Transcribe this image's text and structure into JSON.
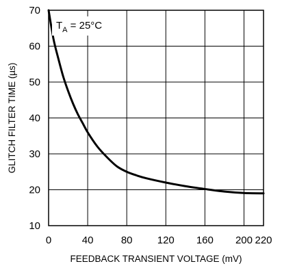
{
  "chart_data": {
    "type": "line",
    "xlabel": "FEEDBACK TRANSIENT VOLTAGE (mV)",
    "ylabel": "GLITCH FILTER TIME (µs)",
    "xlim": [
      0,
      220
    ],
    "ylim": [
      10,
      70
    ],
    "xticks": [
      0,
      40,
      80,
      120,
      160,
      200,
      220
    ],
    "yticks": [
      10,
      20,
      30,
      40,
      50,
      60,
      70
    ],
    "grid": true,
    "annotation": {
      "prefix": "T",
      "subscript": "A",
      "suffix": " = 25°C"
    },
    "series": [
      {
        "x": [
          0,
          5,
          10,
          15,
          20,
          25,
          30,
          35,
          40,
          50,
          60,
          70,
          80,
          90,
          100,
          120,
          140,
          160,
          180,
          200,
          220
        ],
        "y": [
          70,
          62,
          56.5,
          51.5,
          47.5,
          44,
          41,
          38.5,
          36,
          32,
          29,
          26.5,
          25,
          24,
          23.2,
          22,
          21,
          20.2,
          19.5,
          19.1,
          19
        ]
      }
    ]
  }
}
